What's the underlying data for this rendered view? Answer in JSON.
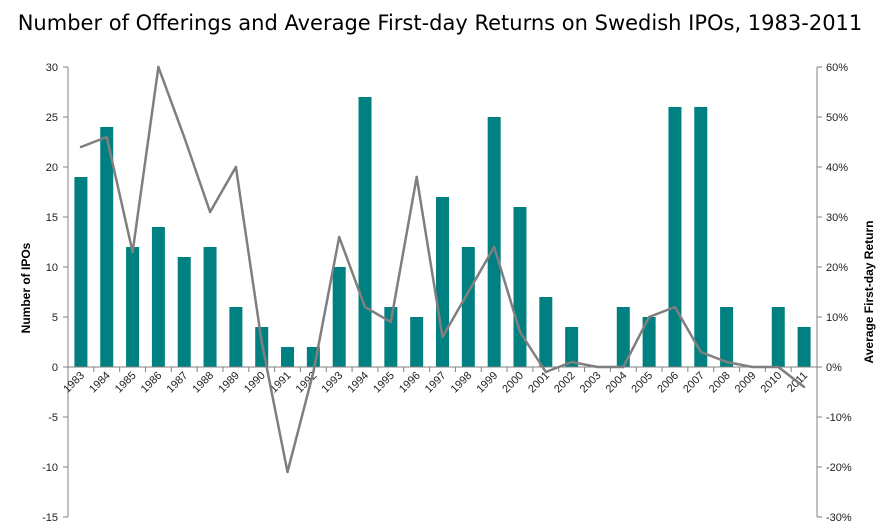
{
  "chart_data": {
    "type": "bar+line",
    "title": "Number of Offerings  and Average First-day Returns on Swedish IPOs, 1983-2011",
    "ylabel_left": "Number of IPOs",
    "ylabel_right": "Average First-day Return",
    "ylim_left": [
      -15,
      30
    ],
    "ylim_right": [
      -30,
      60
    ],
    "left_ticks": [
      "-15",
      "-10",
      "-5",
      "0",
      "5",
      "10",
      "15",
      "20",
      "25",
      "30"
    ],
    "right_ticks": [
      "-30%",
      "-20%",
      "-10%",
      "0%",
      "10%",
      "20%",
      "30%",
      "40%",
      "50%",
      "60%"
    ],
    "categories": [
      "1983",
      "1984",
      "1985",
      "1986",
      "1987",
      "1988",
      "1989",
      "1990",
      "1991",
      "1992",
      "1993",
      "1994",
      "1995",
      "1996",
      "1997",
      "1998",
      "1999",
      "2000",
      "2001",
      "2002",
      "2003",
      "2004",
      "2005",
      "2006",
      "2007",
      "2008",
      "2009",
      "2010",
      "2011"
    ],
    "series": [
      {
        "name": "Number of IPOs",
        "type": "bar",
        "axis": "left",
        "values": [
          19,
          24,
          12,
          14,
          11,
          12,
          6,
          4,
          2,
          2,
          10,
          27,
          6,
          5,
          17,
          12,
          25,
          16,
          7,
          4,
          0,
          6,
          5,
          26,
          26,
          6,
          0,
          6,
          4
        ]
      },
      {
        "name": "Average First-day Return (%)",
        "type": "line",
        "axis": "right",
        "values": [
          44,
          46,
          23,
          60,
          46,
          31,
          40,
          5,
          -21,
          -1,
          26,
          12,
          9,
          38,
          6,
          15,
          24,
          7,
          -1,
          1,
          0,
          0,
          10,
          12,
          3,
          1,
          0,
          0,
          -4
        ]
      }
    ],
    "colors": {
      "bars": "#008080",
      "line": "#7f7f7f",
      "axis": "#808080",
      "text": "#222222"
    },
    "grid": false
  }
}
